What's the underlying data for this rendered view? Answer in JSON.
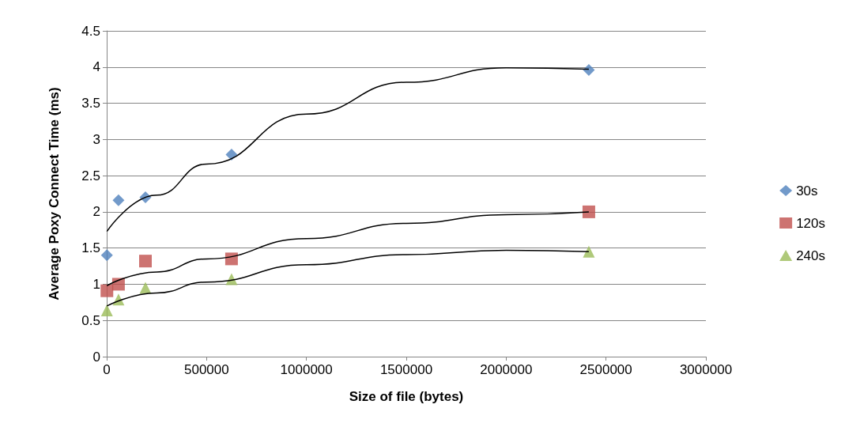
{
  "chart_data": {
    "type": "scatter",
    "xlabel": "Size of file (bytes)",
    "ylabel": "Average Poxy Connect Time (ms)",
    "xlim": [
      0,
      3000000
    ],
    "xticks": [
      0,
      500000,
      1000000,
      1500000,
      2000000,
      2500000,
      3000000
    ],
    "ylim": [
      0,
      4.5
    ],
    "yticks": [
      0,
      0.5,
      1,
      1.5,
      2,
      2.5,
      3,
      3.5,
      4,
      4.5
    ],
    "grid": "y",
    "legend": "right",
    "series": [
      {
        "name": "30s",
        "color": "#4f81bd",
        "marker": "diamond",
        "x": [
          1000,
          59000,
          194000,
          625000,
          2414000
        ],
        "values": [
          1.4,
          2.16,
          2.2,
          2.79,
          3.96
        ]
      },
      {
        "name": "120s",
        "color": "#c0504d",
        "marker": "square",
        "x": [
          1000,
          59000,
          194000,
          625000,
          2414000
        ],
        "values": [
          0.91,
          1.0,
          1.32,
          1.35,
          2.0
        ]
      },
      {
        "name": "240s",
        "color": "#9bbb59",
        "marker": "triangle",
        "x": [
          1000,
          59000,
          194000,
          625000,
          2414000
        ],
        "values": [
          0.64,
          0.79,
          0.95,
          1.07,
          1.45
        ]
      },
      {
        "type": "line",
        "color": "#000000",
        "marker": "none",
        "x": [
          1000,
          250000,
          500000,
          1000000,
          1500000,
          2000000,
          2414000
        ],
        "values": [
          1.73,
          2.23,
          2.66,
          3.35,
          3.79,
          3.99,
          3.97
        ]
      },
      {
        "type": "line",
        "color": "#000000",
        "marker": "none",
        "x": [
          1000,
          250000,
          500000,
          1000000,
          1500000,
          2000000,
          2414000
        ],
        "values": [
          0.98,
          1.17,
          1.35,
          1.63,
          1.84,
          1.96,
          2.0
        ]
      },
      {
        "type": "line",
        "color": "#000000",
        "marker": "none",
        "x": [
          1000,
          250000,
          500000,
          1000000,
          1500000,
          2000000,
          2414000
        ],
        "values": [
          0.7,
          0.88,
          1.03,
          1.27,
          1.41,
          1.47,
          1.45
        ]
      }
    ]
  }
}
